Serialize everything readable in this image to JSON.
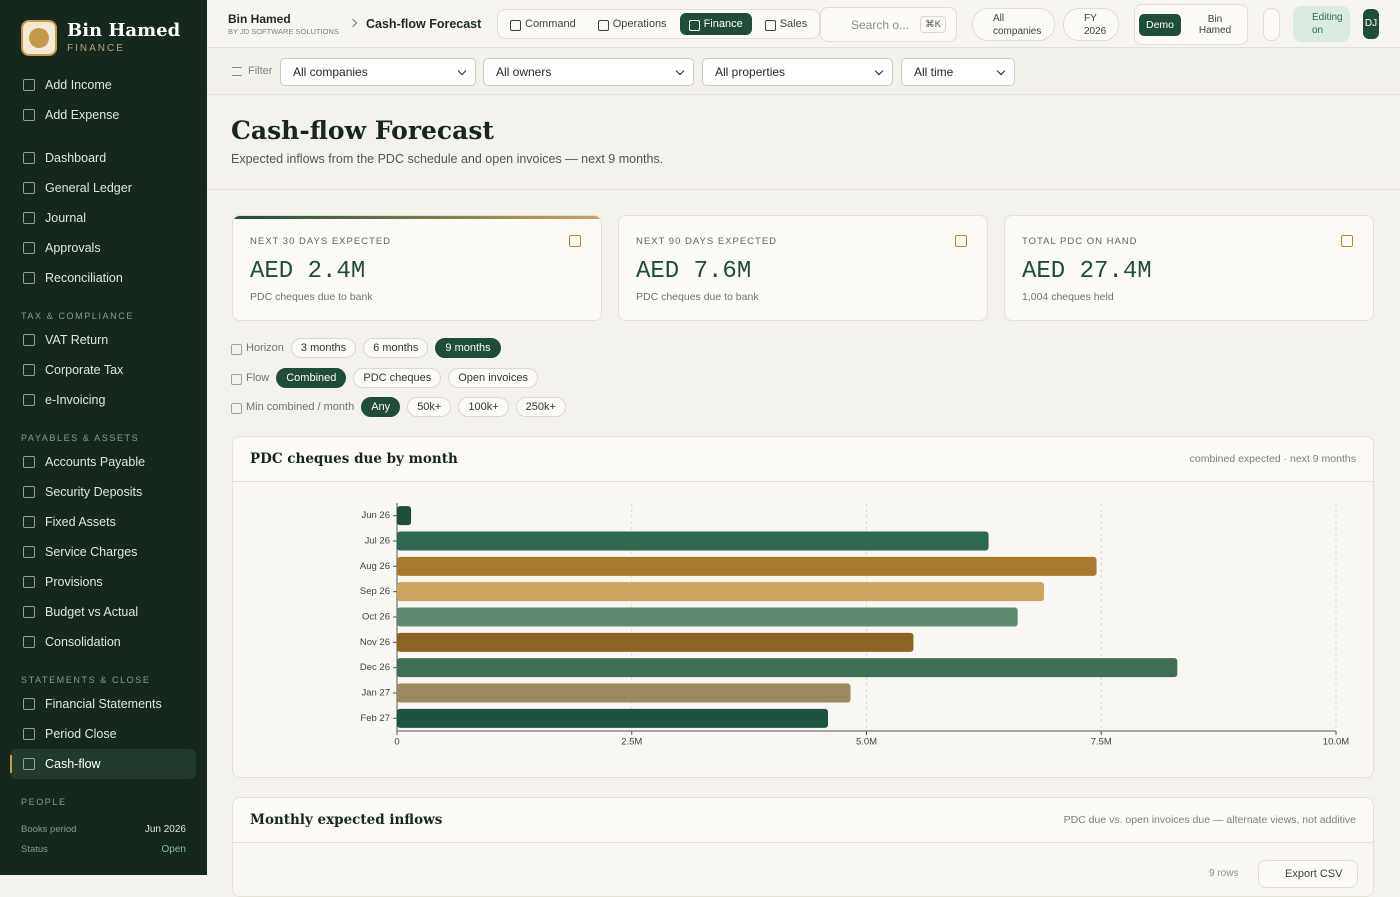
{
  "topbar": {
    "org": "Bin Hamed",
    "org_sub": "BY JD SOFTWARE SOLUTIONS",
    "crumb": "Cash-flow Forecast",
    "tabs": [
      {
        "label": "Command"
      },
      {
        "label": "Operations"
      },
      {
        "label": "Finance",
        "active": true
      },
      {
        "label": "Sales"
      }
    ],
    "search": "Search o...",
    "shortcut": "⌘K",
    "company": "All companies",
    "fy": "FY 2026",
    "mode": "Demo",
    "user": "Bin Hamed",
    "editing": "Editing on",
    "avatar": "DJ"
  },
  "sidebar": {
    "brand": "Bin Hamed",
    "brand_sub": "FINANCE",
    "groups": [
      {
        "items": [
          {
            "label": "Add Income"
          },
          {
            "label": "Add Expense"
          }
        ]
      },
      {
        "items": [
          {
            "label": "Dashboard"
          },
          {
            "label": "General Ledger"
          },
          {
            "label": "Journal"
          },
          {
            "label": "Approvals"
          },
          {
            "label": "Reconciliation"
          }
        ]
      },
      {
        "title": "TAX & COMPLIANCE",
        "items": [
          {
            "label": "VAT Return"
          },
          {
            "label": "Corporate Tax"
          },
          {
            "label": "e-Invoicing"
          }
        ]
      },
      {
        "title": "PAYABLES & ASSETS",
        "items": [
          {
            "label": "Accounts Payable"
          },
          {
            "label": "Security Deposits"
          },
          {
            "label": "Fixed Assets"
          },
          {
            "label": "Service Charges"
          },
          {
            "label": "Provisions"
          },
          {
            "label": "Budget vs Actual"
          },
          {
            "label": "Consolidation"
          }
        ]
      },
      {
        "title": "STATEMENTS & CLOSE",
        "items": [
          {
            "label": "Financial Statements"
          },
          {
            "label": "Period Close"
          },
          {
            "label": "Cash-flow",
            "active": true
          }
        ]
      },
      {
        "title": "PEOPLE"
      }
    ],
    "footer": [
      {
        "label": "Books period",
        "value": "Jun 2026"
      },
      {
        "label": "Status",
        "value": "Open"
      }
    ]
  },
  "filters": {
    "label": "Filter",
    "selects": [
      "All companies",
      "All owners",
      "All properties",
      "All time"
    ]
  },
  "header": {
    "title": "Cash-flow Forecast",
    "subtitle": "Expected inflows from the PDC schedule and open invoices — next 9 months."
  },
  "kpis": [
    {
      "label": "NEXT 30 DAYS EXPECTED",
      "value": "AED 2.4M",
      "note": "PDC cheques due to bank"
    },
    {
      "label": "NEXT 90 DAYS EXPECTED",
      "value": "AED 7.6M",
      "note": "PDC cheques due to bank"
    },
    {
      "label": "TOTAL PDC ON HAND",
      "value": "AED 27.4M",
      "note": "1,004 cheques held"
    }
  ],
  "controls": [
    {
      "label": "Horizon",
      "options": [
        {
          "label": "3 months"
        },
        {
          "label": "6 months"
        },
        {
          "label": "9 months",
          "active": true
        }
      ]
    },
    {
      "label": "Flow",
      "options": [
        {
          "label": "Combined",
          "active": true
        },
        {
          "label": "PDC cheques"
        },
        {
          "label": "Open invoices"
        }
      ]
    },
    {
      "label": "Min combined / month",
      "options": [
        {
          "label": "Any",
          "active": true
        },
        {
          "label": "50k+"
        },
        {
          "label": "100k+"
        },
        {
          "label": "250k+"
        }
      ]
    }
  ],
  "chart_data": {
    "type": "hbar",
    "title": "PDC cheques due by month",
    "subtitle": "combined expected · next 9 months",
    "categories": [
      "Jun 26",
      "Jul 26",
      "Aug 26",
      "Sep 26",
      "Oct 26",
      "Nov 26",
      "Dec 26",
      "Jan 27",
      "Feb 27"
    ],
    "values": [
      150000,
      6300000,
      7450000,
      6890000,
      6610000,
      5500000,
      8310000,
      4830000,
      4590000
    ],
    "colors": [
      "#1f4d3a",
      "#2d6a4f",
      "#a87a2e",
      "#c9a55f",
      "#5e8a72",
      "#8a6420",
      "#3f6e55",
      "#9c8a5e",
      "#1f5240"
    ],
    "xlim": [
      0,
      10000000
    ],
    "xticks": [
      0,
      {
        "value": 2500000,
        "label": "2.5M"
      },
      {
        "value": 5000000,
        "label": "5.0M"
      },
      {
        "value": 7500000,
        "label": "7.5M"
      },
      {
        "value": 10000000,
        "label": "10.0M"
      }
    ],
    "grid": true
  },
  "table_card": {
    "title": "Monthly expected inflows",
    "subtitle": "PDC due vs. open invoices due — alternate views, not additive",
    "rows_note": "9 rows",
    "export": "Export CSV"
  }
}
